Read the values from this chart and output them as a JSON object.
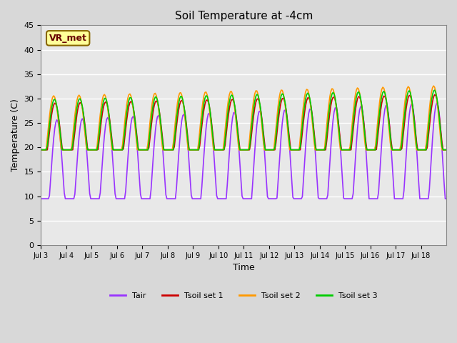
{
  "title": "Soil Temperature at -4cm",
  "xlabel": "Time",
  "ylabel": "Temperature (C)",
  "ylim": [
    0,
    45
  ],
  "yticks": [
    0,
    5,
    10,
    15,
    20,
    25,
    30,
    35,
    40,
    45
  ],
  "xtick_labels": [
    "Jul 3",
    "Jul 4",
    "Jul 5",
    "Jul 6",
    "Jul 7",
    "Jul 8",
    "Jul 9",
    "Jul 10",
    "Jul 11",
    "Jul 12",
    "Jul 13",
    "Jul 14",
    "Jul 15",
    "Jul 16",
    "Jul 17",
    "Jul 18"
  ],
  "annotation": "VR_met",
  "color_tair": "#9933FF",
  "color_tsoil1": "#CC0000",
  "color_tsoil2": "#FF9900",
  "color_tsoil3": "#00CC00",
  "plot_bg": "#E8E8E8",
  "fig_bg": "#D8D8D8",
  "n_days": 16,
  "legend_labels": [
    "Tair",
    "Tsoil set 1",
    "Tsoil set 2",
    "Tsoil set 3"
  ]
}
